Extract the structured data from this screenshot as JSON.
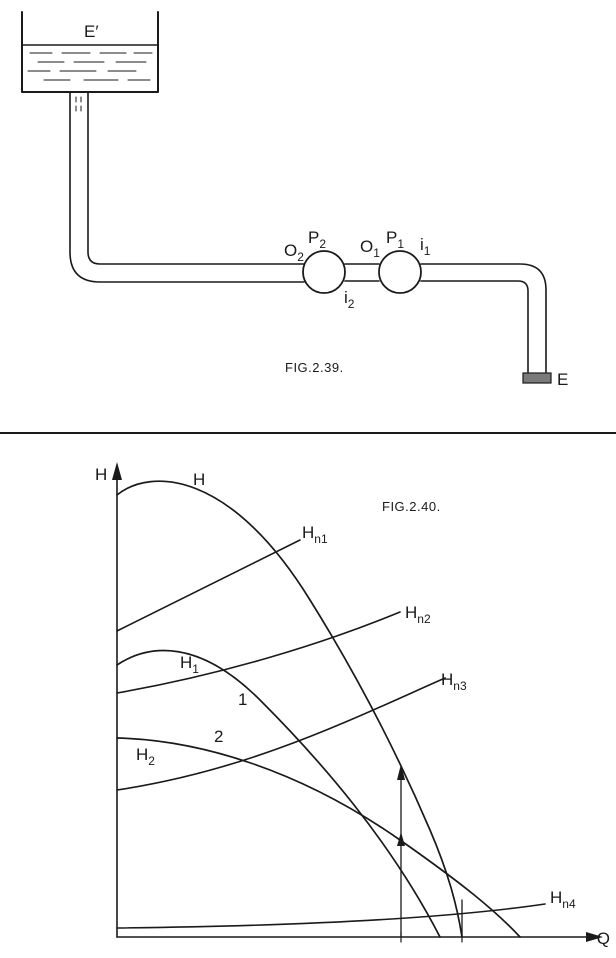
{
  "fig239": {
    "caption": "FIG.2.39.",
    "reservoir_label": "E′",
    "intake_label": "E",
    "pump2": {
      "name": "P",
      "sub": "2"
    },
    "pump1": {
      "name": "P",
      "sub": "1"
    },
    "outlet2": {
      "name": "O",
      "sub": "2"
    },
    "outlet1": {
      "name": "O",
      "sub": "1"
    },
    "inlet2": {
      "name": "i",
      "sub": "2"
    },
    "inlet1": {
      "name": "i",
      "sub": "1"
    }
  },
  "fig240": {
    "caption": "FIG.2.40.",
    "y_axis_label": "H",
    "x_axis_label": "Q",
    "curve_H_label": "H",
    "curve_H1_label": {
      "name": "H",
      "sub": "1"
    },
    "curve_H2_label": {
      "name": "H",
      "sub": "2"
    },
    "point1_label": "1",
    "point2_label": "2",
    "hn1_label": {
      "name": "H",
      "sub": "n1"
    },
    "hn2_label": {
      "name": "H",
      "sub": "n2"
    },
    "hn3_label": {
      "name": "H",
      "sub": "n3"
    },
    "hn4_label": {
      "name": "H",
      "sub": "n4"
    }
  }
}
